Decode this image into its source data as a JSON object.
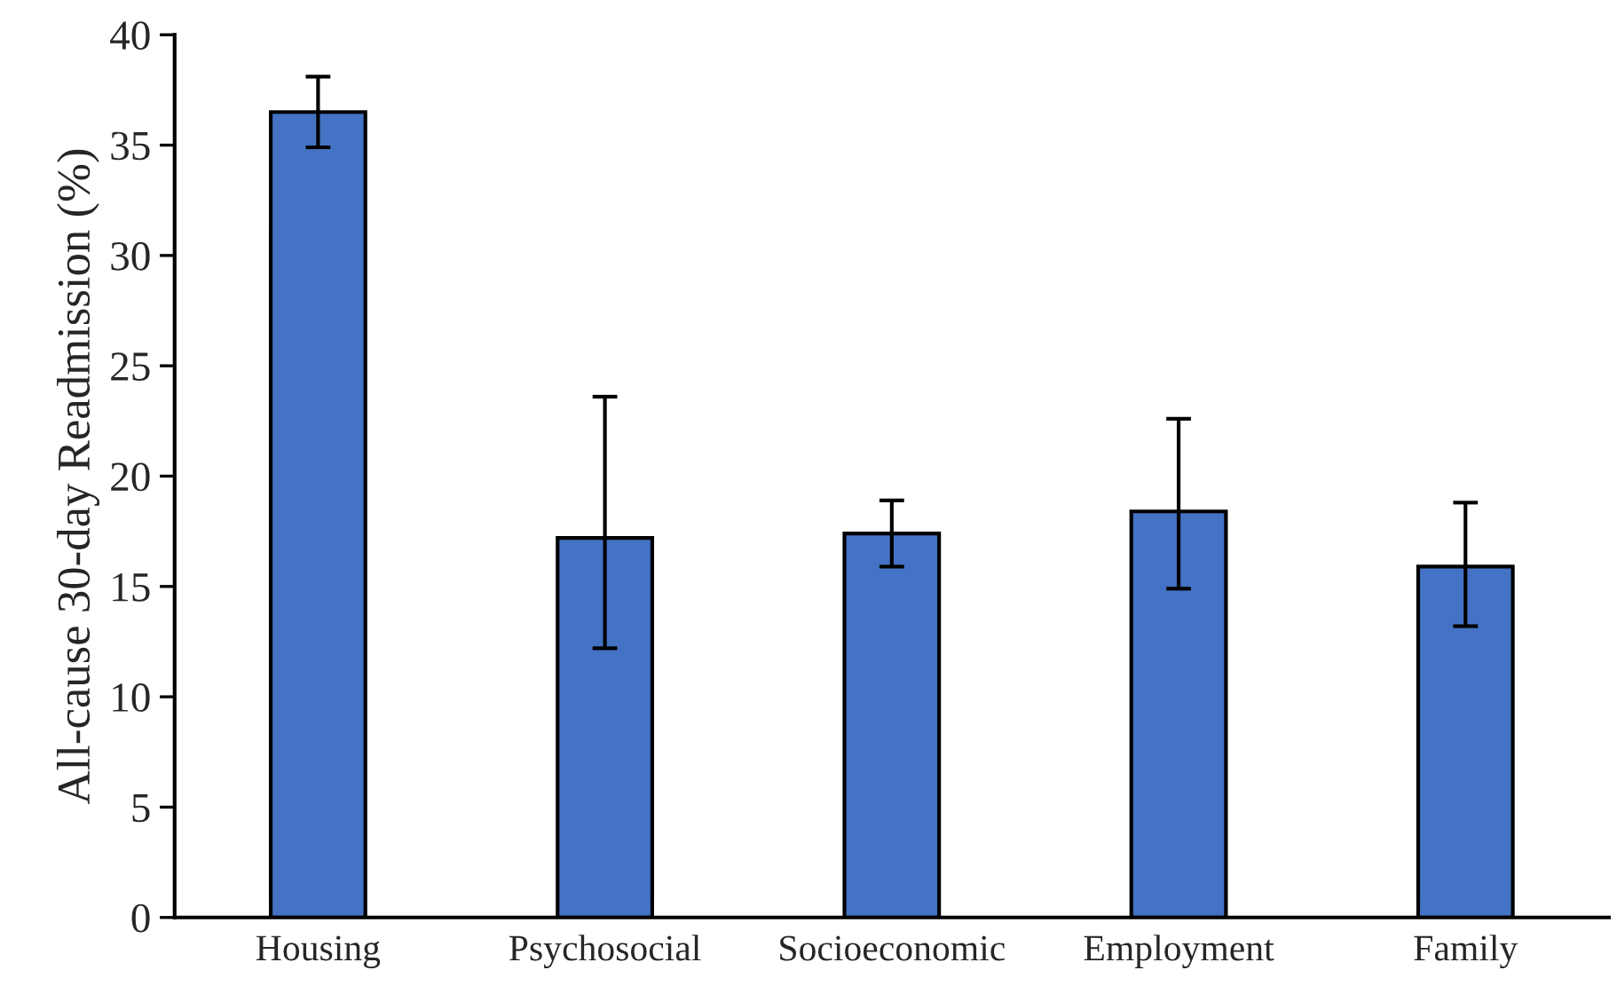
{
  "chart_data": {
    "type": "bar",
    "ylabel": "All-cause 30-day Readmission (%)",
    "categories": [
      "Housing",
      "Psychosocial",
      "Socioeconomic",
      "Employment",
      "Family"
    ],
    "values": [
      36.5,
      17.2,
      17.4,
      18.4,
      15.9
    ],
    "errors": [
      [
        34.9,
        38.1
      ],
      [
        12.2,
        23.6
      ],
      [
        15.9,
        18.9
      ],
      [
        14.9,
        22.6
      ],
      [
        13.2,
        18.8
      ]
    ],
    "color": "#4472c4",
    "ylim": [
      0,
      40
    ],
    "yticks": [
      0,
      5,
      10,
      15,
      20,
      25,
      30,
      35,
      40
    ],
    "grid": false
  }
}
